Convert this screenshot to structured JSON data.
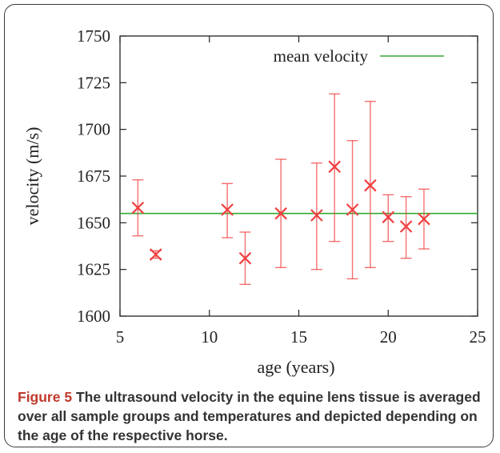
{
  "chart_data": {
    "type": "scatter",
    "xlabel": "age (years)",
    "ylabel": "velocity (m/s)",
    "xlim": [
      5,
      25
    ],
    "ylim": [
      1600,
      1750
    ],
    "xticks": [
      5,
      10,
      15,
      20,
      25
    ],
    "yticks": [
      1600,
      1625,
      1650,
      1675,
      1700,
      1725,
      1750
    ],
    "grid": false,
    "legend_position": "top-right",
    "series": [
      {
        "name": "mean velocity",
        "kind": "hline",
        "color": "#33aa33",
        "y": 1655
      },
      {
        "kind": "points_with_errorbars",
        "color": "#f04040",
        "points": [
          {
            "x": 6,
            "y": 1658,
            "low": 1643,
            "high": 1673
          },
          {
            "x": 7,
            "y": 1633,
            "low": 1631,
            "high": 1635
          },
          {
            "x": 11,
            "y": 1657,
            "low": 1642,
            "high": 1671
          },
          {
            "x": 12,
            "y": 1631,
            "low": 1617,
            "high": 1645
          },
          {
            "x": 14,
            "y": 1655,
            "low": 1626,
            "high": 1684
          },
          {
            "x": 16,
            "y": 1654,
            "low": 1625,
            "high": 1682
          },
          {
            "x": 17,
            "y": 1680,
            "low": 1640,
            "high": 1719
          },
          {
            "x": 18,
            "y": 1657,
            "low": 1620,
            "high": 1694
          },
          {
            "x": 19,
            "y": 1670,
            "low": 1626,
            "high": 1715
          },
          {
            "x": 20,
            "y": 1653,
            "low": 1640,
            "high": 1665
          },
          {
            "x": 21,
            "y": 1648,
            "low": 1631,
            "high": 1664
          },
          {
            "x": 22,
            "y": 1652,
            "low": 1636,
            "high": 1668
          }
        ]
      }
    ]
  },
  "caption": {
    "label": "Figure 5",
    "text": " The ultrasound velocity in the equine lens tissue is averaged over all sample groups and temperatures and depicted depending on the age of the respective horse."
  }
}
